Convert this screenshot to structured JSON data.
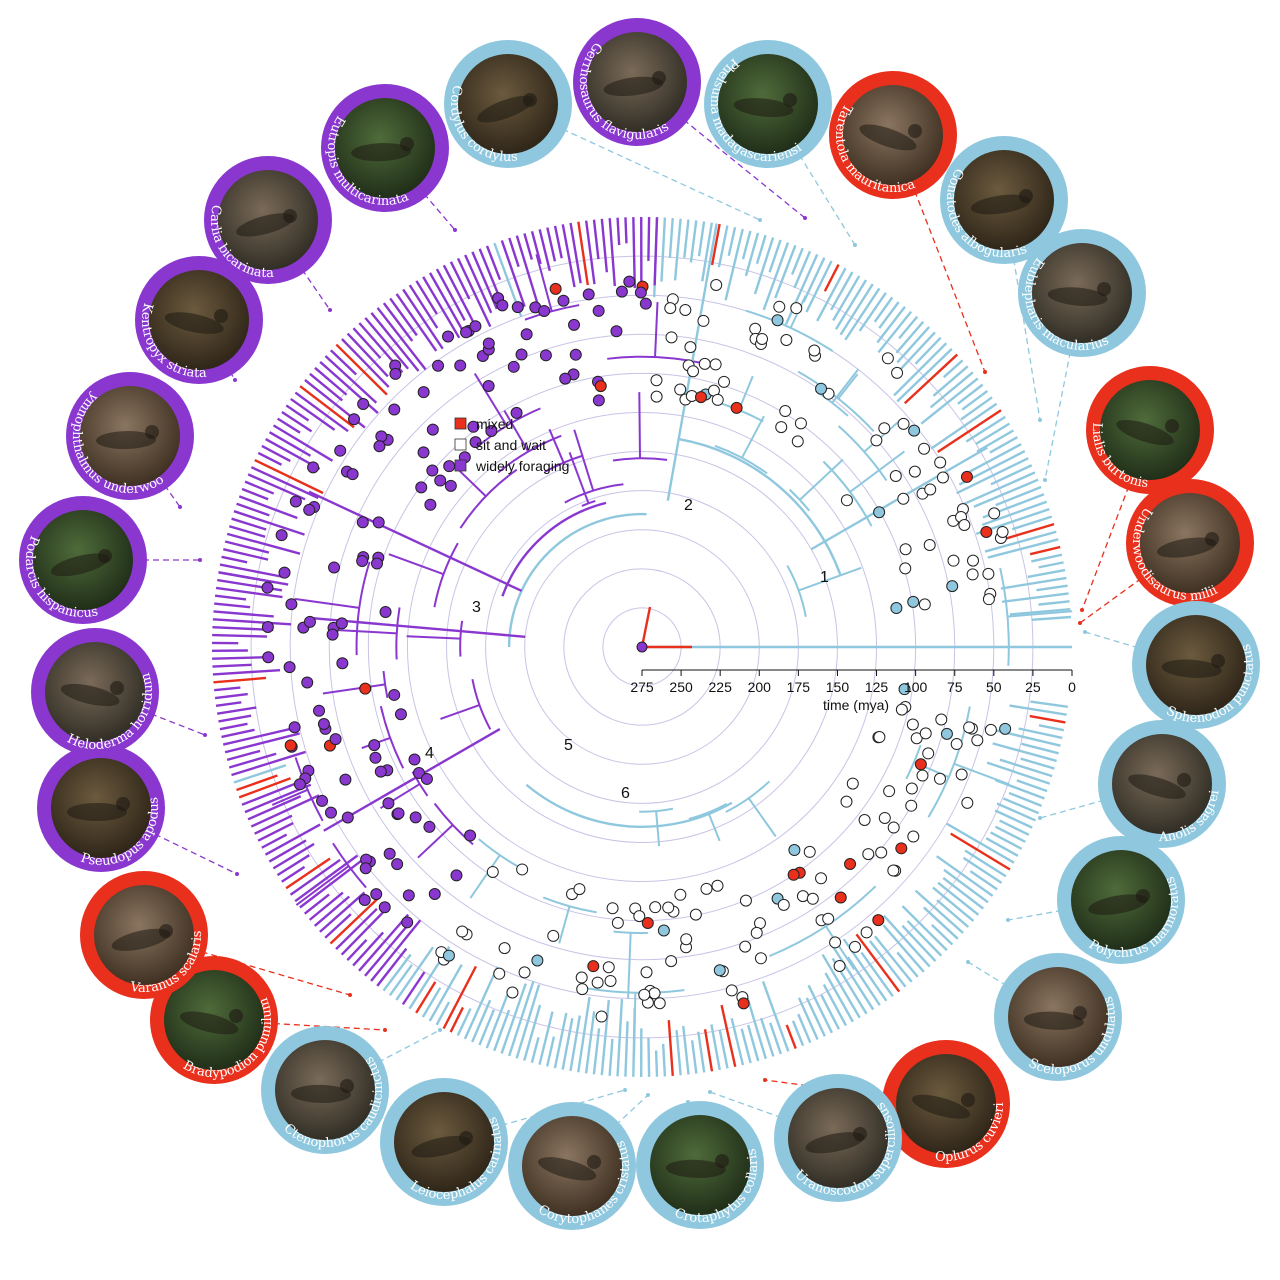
{
  "colors": {
    "mixed": "#e8301c",
    "sit_and_wait": "#8fc8de",
    "widely_foraging": "#8a37d0",
    "ring": "#c9c3e6"
  },
  "legend": {
    "mixed": "mixed",
    "sit_and_wait": "sit and wait",
    "widely_foraging": "widely foraging"
  },
  "axis": {
    "label": "time (mya)",
    "ticks": [
      "275",
      "250",
      "225",
      "200",
      "175",
      "150",
      "125",
      "100",
      "75",
      "50",
      "25",
      "0"
    ]
  },
  "nodes": [
    "1",
    "2",
    "3",
    "4",
    "5",
    "6"
  ],
  "species": [
    {
      "name": "Cordylus cordylus",
      "mode": "sit_and_wait"
    },
    {
      "name": "Gerrhosaurus flavigularis",
      "mode": "widely_foraging"
    },
    {
      "name": "Phelsuma madagascariensis",
      "mode": "sit_and_wait"
    },
    {
      "name": "Tarentola mauritanica",
      "mode": "mixed"
    },
    {
      "name": "Gonatodes albogularis",
      "mode": "sit_and_wait"
    },
    {
      "name": "Eublepharis macularius",
      "mode": "sit_and_wait"
    },
    {
      "name": "Lialis burtonis",
      "mode": "mixed"
    },
    {
      "name": "Underwoodisaurus milii",
      "mode": "mixed"
    },
    {
      "name": "Sphenodon punctatus",
      "mode": "sit_and_wait"
    },
    {
      "name": "Anolis sagrei",
      "mode": "sit_and_wait"
    },
    {
      "name": "Polychrus marmoratus",
      "mode": "sit_and_wait"
    },
    {
      "name": "Sceloporus undulatus",
      "mode": "sit_and_wait"
    },
    {
      "name": "Oplurus cuvieri",
      "mode": "mixed"
    },
    {
      "name": "Uranoscodon superciliosus",
      "mode": "sit_and_wait"
    },
    {
      "name": "Crotaphytus collaris",
      "mode": "sit_and_wait"
    },
    {
      "name": "Corytophanes cristatus",
      "mode": "sit_and_wait"
    },
    {
      "name": "Leiocephalus carinatus",
      "mode": "sit_and_wait"
    },
    {
      "name": "Ctenophorus caudicinctus",
      "mode": "sit_and_wait"
    },
    {
      "name": "Bradypodion pumilum",
      "mode": "mixed"
    },
    {
      "name": "Varanus scalaris",
      "mode": "mixed"
    },
    {
      "name": "Pseudopus apodus",
      "mode": "widely_foraging"
    },
    {
      "name": "Heloderma horridum",
      "mode": "widely_foraging"
    },
    {
      "name": "Podarcis hispanicus",
      "mode": "widely_foraging"
    },
    {
      "name": "Gymnophthalmus underwoodi",
      "mode": "widely_foraging"
    },
    {
      "name": "Kentropyx striata",
      "mode": "widely_foraging"
    },
    {
      "name": "Carlia bicarinata",
      "mode": "widely_foraging"
    },
    {
      "name": "Eutropis multicarinata",
      "mode": "widely_foraging"
    }
  ]
}
